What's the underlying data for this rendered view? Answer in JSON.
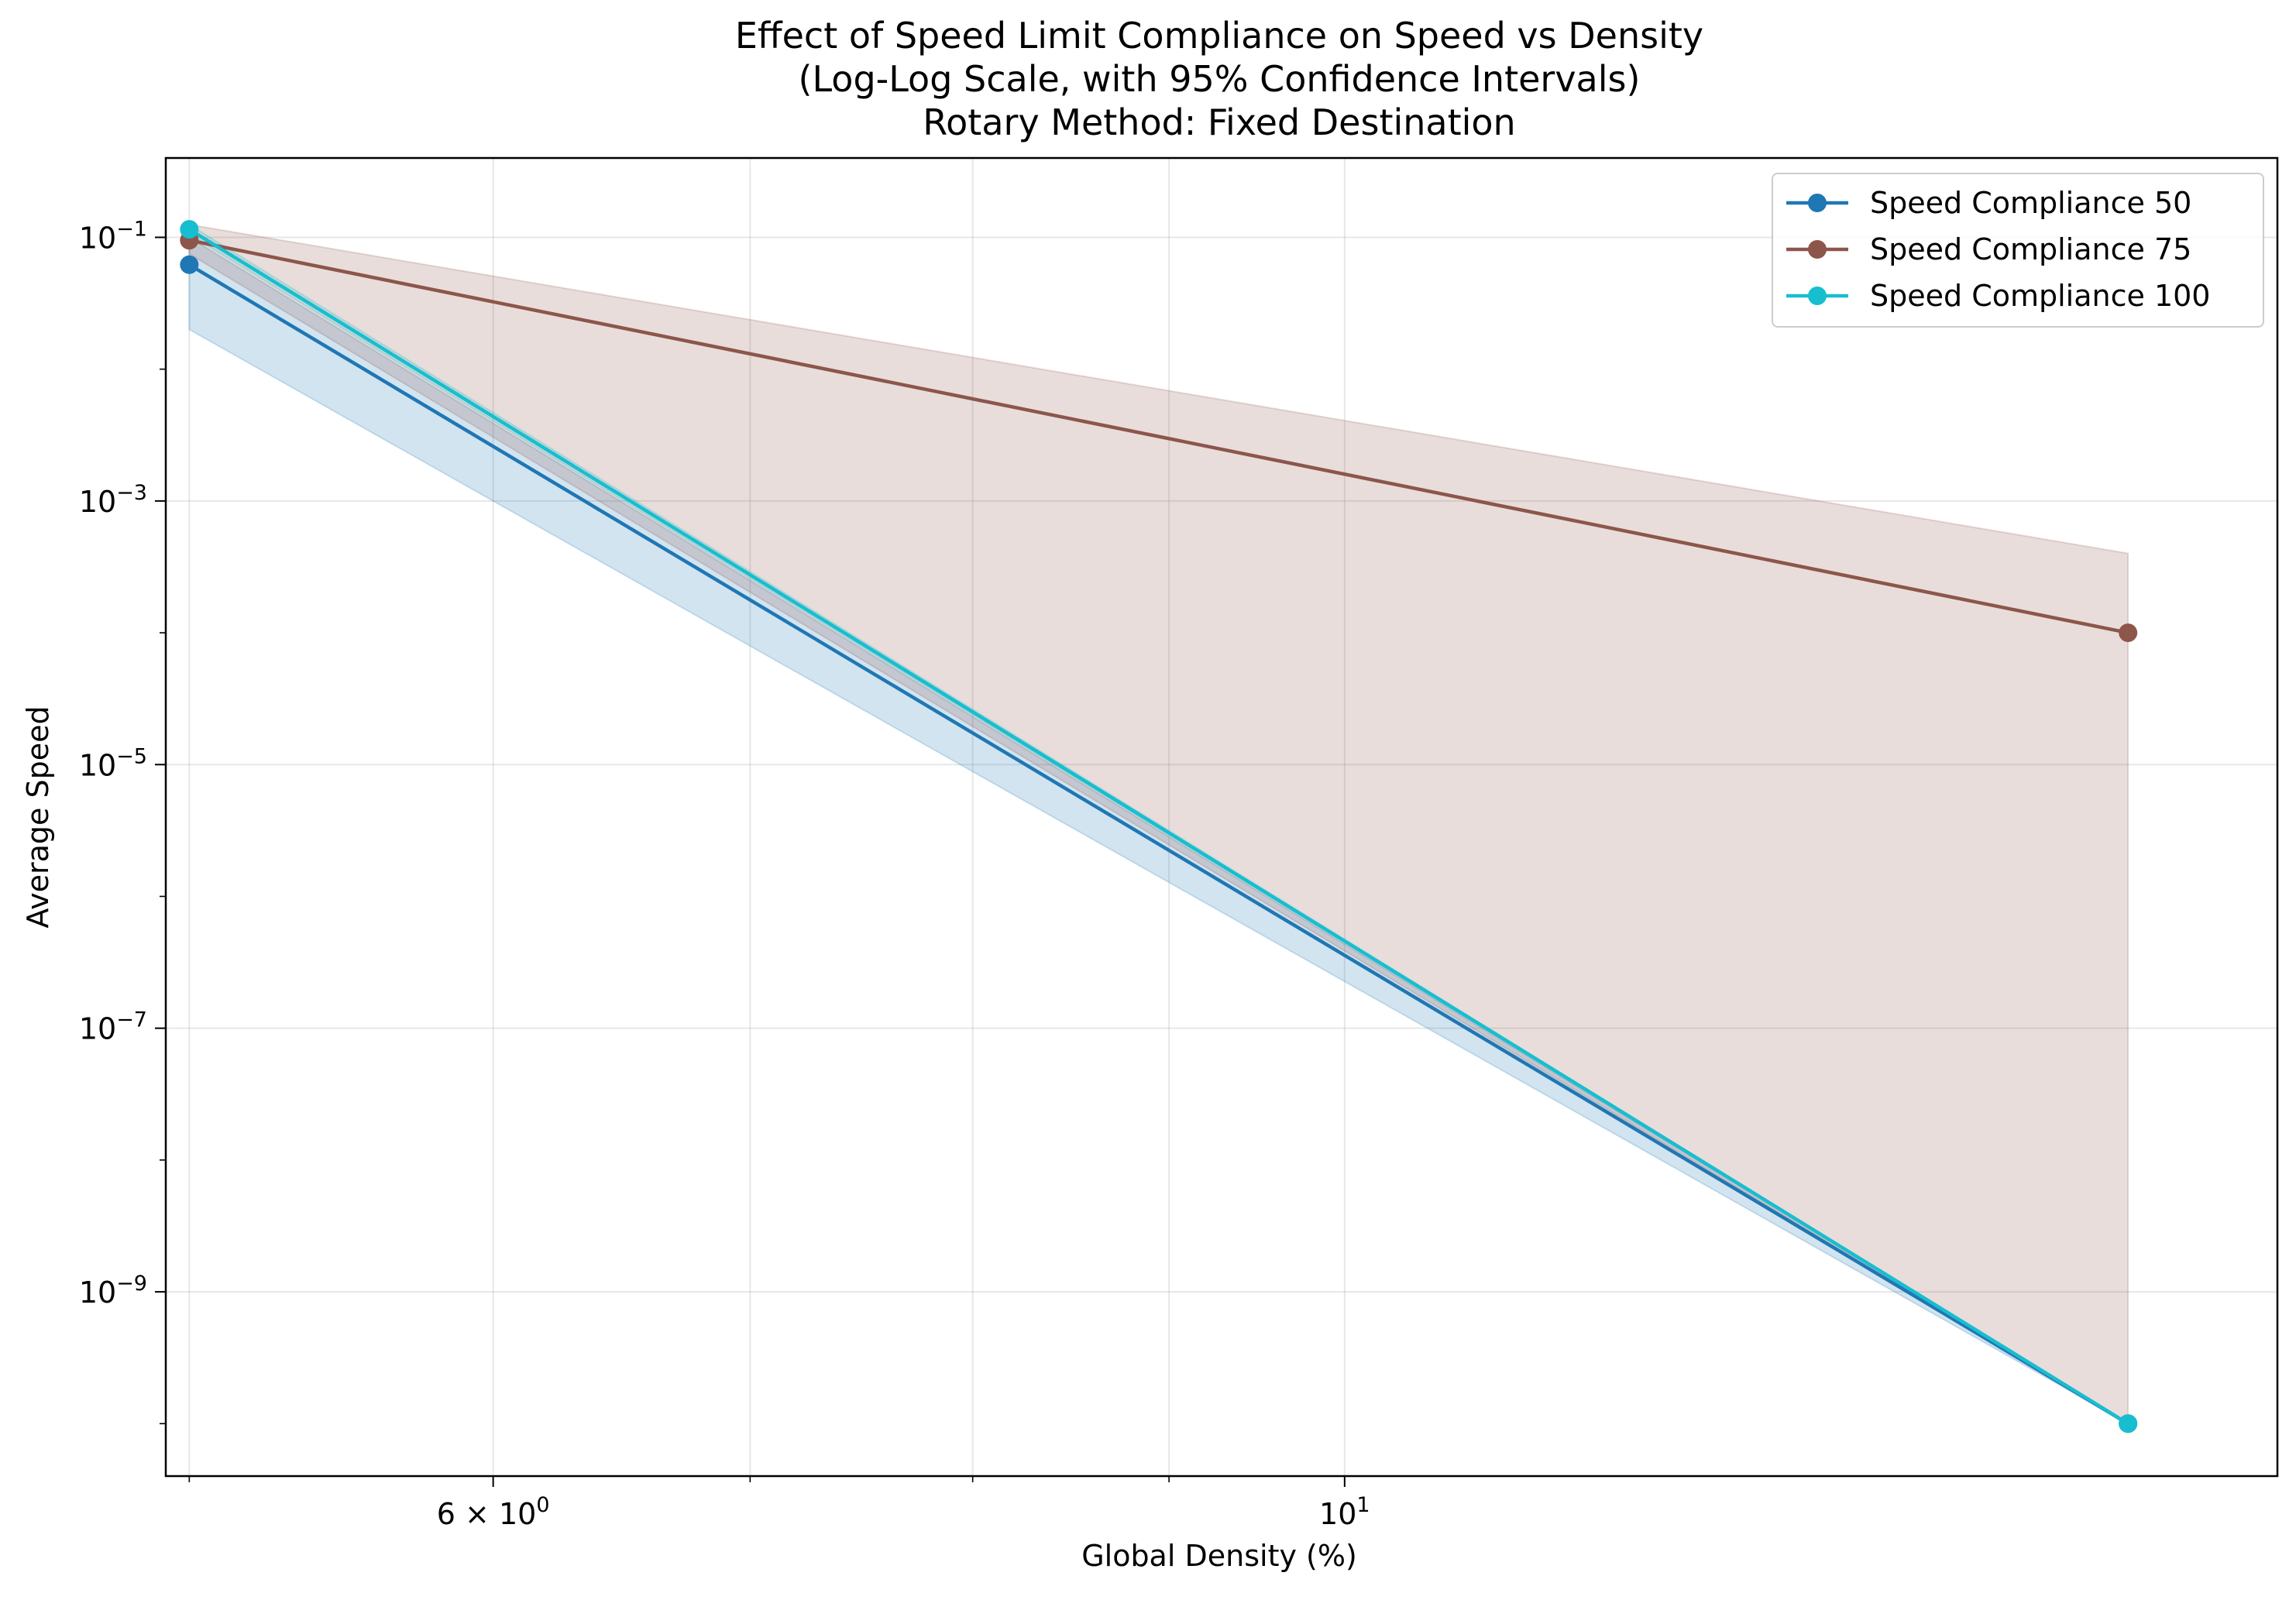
{
  "chart_data": {
    "type": "line",
    "title_lines": [
      "Effect of Speed Limit Compliance on Speed vs Density",
      "(Log-Log Scale, with 95% Confidence Intervals)",
      "Rotary Method: Fixed Destination"
    ],
    "xlabel": "Global Density (%)",
    "ylabel": "Average Speed",
    "x_scale": "log",
    "y_scale": "log",
    "xlim": [
      4.93,
      17.5
    ],
    "ylim": [
      4e-11,
      0.4
    ],
    "grid": true,
    "legend_position": "upper right",
    "x_ticks": [
      {
        "value": 6,
        "base": "6 × 10",
        "exp": "0"
      },
      {
        "value": 10,
        "base": "10",
        "exp": "1"
      }
    ],
    "x_minor_ticks": [
      5,
      7,
      8,
      9
    ],
    "y_ticks": [
      {
        "value": 0.1,
        "base": "10",
        "exp": "−1"
      },
      {
        "value": 0.001,
        "base": "10",
        "exp": "−3"
      },
      {
        "value": 1e-05,
        "base": "10",
        "exp": "−5"
      },
      {
        "value": 1e-07,
        "base": "10",
        "exp": "−7"
      },
      {
        "value": 1e-09,
        "base": "10",
        "exp": "−9"
      }
    ],
    "x": [
      5.0,
      16.0
    ],
    "series": [
      {
        "name": "Speed Compliance 50",
        "color": "#1f77b4",
        "values": [
          0.062,
          1e-10
        ],
        "ci_lower": [
          0.02,
          1e-10
        ],
        "ci_upper": [
          0.1,
          1e-10
        ]
      },
      {
        "name": "Speed Compliance 75",
        "color": "#8c564b",
        "values": [
          0.095,
          0.0001
        ],
        "ci_lower": [
          0.075,
          1e-10
        ],
        "ci_upper": [
          0.125,
          0.0004
        ]
      },
      {
        "name": "Speed Compliance 100",
        "color": "#17becf",
        "values": [
          0.115,
          1e-10
        ],
        "ci_lower": [
          0.105,
          1e-10
        ],
        "ci_upper": [
          0.125,
          1e-10
        ]
      }
    ]
  }
}
